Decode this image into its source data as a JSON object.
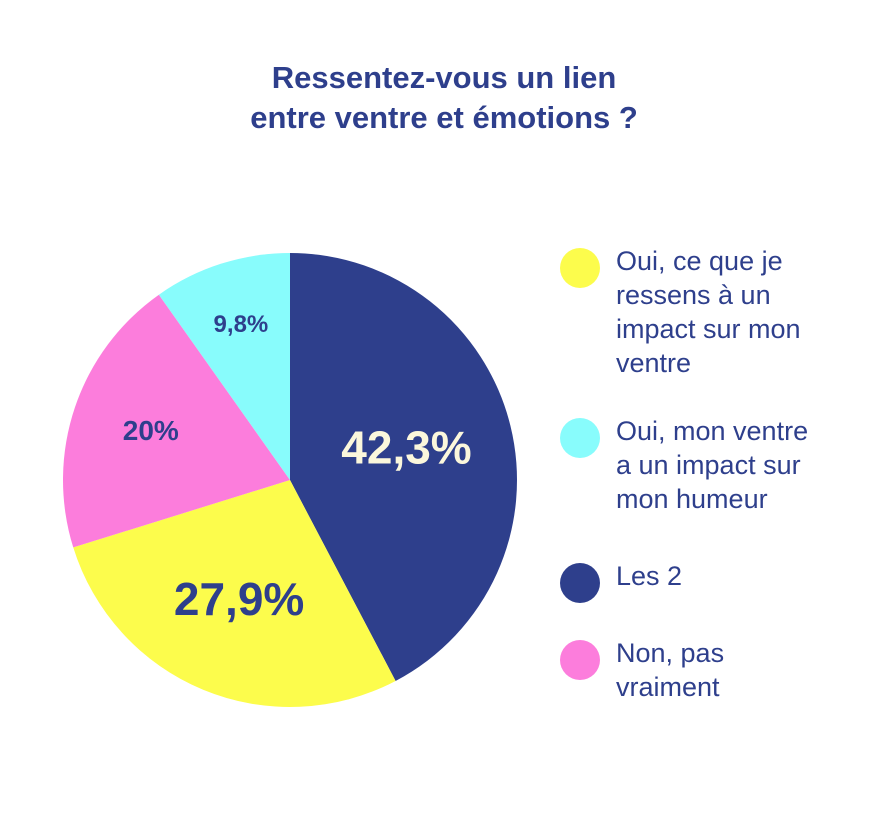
{
  "chart_data": {
    "type": "pie",
    "title": "Ressentez-vous un lien\nentre ventre et émotions ?",
    "categories": [
      "Les 2",
      "Oui, ce que je\nressens à un\nimpact sur mon\nventre",
      "Non, pas\nvraiment",
      "Oui, mon ventre\na un impact sur\nmon humeur"
    ],
    "values": [
      42.3,
      27.9,
      20,
      9.8
    ],
    "value_labels": [
      "42,3%",
      "27,9%",
      "20%",
      "9,8%"
    ],
    "colors": [
      "#2e3f8c",
      "#fcfc4c",
      "#fc7ddc",
      "#88fcfc"
    ],
    "legend_order": [
      1,
      3,
      0,
      2
    ],
    "legend": "right"
  }
}
